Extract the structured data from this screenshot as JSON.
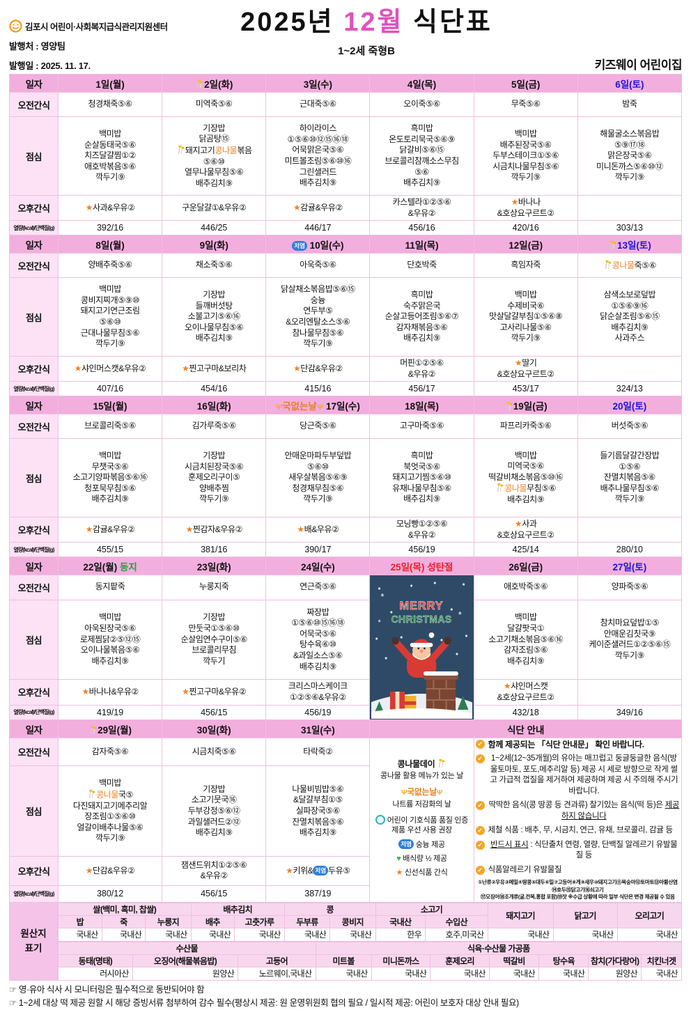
{
  "header": {
    "org": "김포시 어린이·사회복지급식관리지원센터",
    "publisher": "발행처 : 영양팀",
    "issued": "발행일 : 2025. 11. 17.",
    "title_year": "2025년",
    "title_month": "12월",
    "title_rest": "식단표",
    "subtitle": "1~2세 죽형B",
    "center_name": "키즈웨이 어린이집"
  },
  "row_labels": {
    "date": "일자",
    "am": "오전간식",
    "lunch": "점심",
    "pm": "오후간식",
    "kcal": "열량(kcal)/단백질(g)"
  },
  "weeks": [
    {
      "days": [
        {
          "date": "1일(월)",
          "am": "청경채죽⑤⑥",
          "lunch": [
            "백미밥",
            "순살동태국⑤⑥",
            "치즈달걀찜①②",
            "애호박볶음⑤⑥",
            "깍두기⑨"
          ],
          "pm": "★사과&우유②",
          "kcal": "392/16"
        },
        {
          "date": "2일(화)",
          "icon": "sprout",
          "am": "미역죽⑤⑥",
          "lunch": [
            "기장밥",
            "닭곰탕⑮",
            "§돼지고기콩나물볶음",
            "⑤⑥⑩",
            "열무나물무침⑤⑥",
            "배추김치⑨"
          ],
          "pm": "구운달걀①&우유②",
          "kcal": "446/25"
        },
        {
          "date": "3일(수)",
          "am": "근대죽⑤⑥",
          "lunch": [
            "하이라이스",
            "①⑤⑥⑩⑫⑮⑯⑱",
            "어묵맑은국⑤⑥",
            "미트볼조림⑤⑥⑩⑯",
            "그린샐러드",
            "배추김치⑨"
          ],
          "pm": "★감귤&우유②",
          "kcal": "446/17"
        },
        {
          "date": "4일(목)",
          "am": "오이죽⑤⑥",
          "lunch": [
            "흑미밥",
            "온도토리묵국⑤⑥⑨",
            "닭갈비⑤⑥⑮",
            "브로콜리참깨소스무침",
            "⑤⑥",
            "배추김치⑨"
          ],
          "pm": "카스텔라①②⑤⑥\n&우유②",
          "kcal": "456/16"
        },
        {
          "date": "5일(금)",
          "am": "무죽⑤⑥",
          "lunch": [
            "백미밥",
            "배추된장국⑤⑥",
            "두부스테이크①⑤⑥",
            "시금치나물무침⑤⑥",
            "깍두기⑨"
          ],
          "pm": "★바나나\n&호상요구르트②",
          "kcal": "420/16"
        },
        {
          "date": "6일(토)",
          "color": "#1b16d8",
          "am": "밤죽",
          "lunch": [
            "해물굴소스볶음밥",
            "⑤⑨⑰⑱",
            "맑은장국⑤⑥",
            "미니돈까스⑤⑥⑩⑫",
            "깍두기⑨"
          ],
          "pm": "",
          "kcal": "303/13"
        }
      ]
    },
    {
      "days": [
        {
          "date": "8일(월)",
          "am": "양배추죽⑤⑥",
          "lunch": [
            "백미밥",
            "콩비지찌개⑤⑨⑩",
            "돼지고기연근조림",
            "⑤⑥⑩",
            "근대나물무침⑤⑥",
            "깍두기⑨"
          ],
          "pm": "★샤인머스캣&우유②",
          "kcal": "407/16"
        },
        {
          "date": "9일(화)",
          "am": "채소죽⑤⑥",
          "lunch": [
            "기장밥",
            "들깨버섯탕",
            "소불고기⑤⑥⑯",
            "오이나물무침⑤⑥",
            "배추김치⑨"
          ],
          "pm": "★찐고구마&보리차",
          "kcal": "454/16"
        },
        {
          "date": "10일(수)",
          "icon": "lowsalt",
          "am": "아욱죽⑤⑥",
          "lunch": [
            "닭살채소볶음밥⑤⑥⑮",
            "숭늉",
            "연두부⑤",
            "&오리엔탈소스⑤⑥",
            "참나물무침⑤⑥",
            "깍두기⑨"
          ],
          "pm": "★단감&우유②",
          "kcal": "415/16"
        },
        {
          "date": "11일(목)",
          "am": "단호박죽",
          "lunch": [
            "흑미밥",
            "숙주맑은국",
            "순살고등어조림⑤⑥⑦",
            "감자채볶음⑤⑥",
            "배추김치⑨"
          ],
          "pm": "머핀①②⑤⑥\n&우유②",
          "kcal": "456/17"
        },
        {
          "date": "12일(금)",
          "am": "흑임자죽",
          "lunch": [
            "백미밥",
            "수제비국⑥",
            "맛살달걀부침①⑤⑥⑧",
            "고사리나물⑤⑥",
            "깍두기⑨"
          ],
          "pm": "★딸기\n&호상요구르트②",
          "kcal": "453/17"
        },
        {
          "date": "13일(토)",
          "color": "#1b16d8",
          "icon": "sprout",
          "am": "§콩나물죽⑤⑥",
          "lunch": [
            "삼색소보로덮밥",
            "①⑤⑥⑨⑯",
            "닭순살조림⑤⑥⑮",
            "배추김치⑨",
            "사과주스"
          ],
          "pm": "",
          "kcal": "324/13"
        }
      ]
    },
    {
      "days": [
        {
          "date": "15일(월)",
          "am": "브로콜리죽⑤⑥",
          "lunch": [
            "백미밥",
            "무챗국⑤⑥",
            "소고기양파볶음⑤⑥⑯",
            "청포묵무침⑤⑥",
            "배추김치⑨"
          ],
          "pm": "★감귤&우유②",
          "kcal": "455/15"
        },
        {
          "date": "16일(화)",
          "am": "김가루죽⑤⑥",
          "lunch": [
            "기장밥",
            "시금치된장국⑤⑥",
            "훈제오리구이⑤",
            "양배추찜",
            "깍두기⑨"
          ],
          "pm": "★찐감자&우유②",
          "kcal": "381/16"
        },
        {
          "date": "17일(수)",
          "icon": "nosoup",
          "am": "당근죽⑤⑥",
          "lunch": [
            "안매운마파두부덮밥",
            "⑤⑥⑩",
            "새우살볶음⑤⑥⑨",
            "청경채무침⑤⑥",
            "깍두기⑨"
          ],
          "pm": "★배&우유②",
          "kcal": "390/17"
        },
        {
          "date": "18일(목)",
          "am": "고구마죽⑤⑥",
          "lunch": [
            "흑미밥",
            "북엇국⑤⑥",
            "돼지고기찜⑤⑥⑩",
            "유채나물무침⑤⑥",
            "배추김치⑨"
          ],
          "pm": "모닝빵①②⑤⑥\n&우유②",
          "kcal": "456/19"
        },
        {
          "date": "19일(금)",
          "icon": "sprout",
          "am": "파프리카죽⑤⑥",
          "lunch": [
            "백미밥",
            "미역국⑤⑥",
            "떡갈비채소볶음⑤⑩⑯",
            "§콩나물무침⑤⑥",
            "배추김치⑨"
          ],
          "pm": "★사과\n&호상요구르트②",
          "kcal": "425/14"
        },
        {
          "date": "20일(토)",
          "color": "#1b16d8",
          "am": "버섯죽⑤⑥",
          "lunch": [
            "들기름달걀간장밥",
            "①⑤⑥",
            "잔멸치볶음⑤⑥",
            "배추나물무침⑤⑥",
            "깍두기⑨"
          ],
          "pm": "",
          "kcal": "280/10"
        }
      ]
    },
    {
      "days": [
        {
          "date": "22일(월)",
          "tag": {
            "text": "동지",
            "color": "#1fa03c"
          },
          "am": "동지팥죽",
          "lunch": [
            "백미밥",
            "아욱된장국⑤⑥",
            "로제찜닭②⑤⑫⑮",
            "오이나물볶음⑤⑥",
            "배추김치⑨"
          ],
          "pm": "★바나나&우유②",
          "kcal": "419/19"
        },
        {
          "date": "23일(화)",
          "am": "누룽지죽",
          "lunch": [
            "기장밥",
            "만둣국①⑤⑥⑩",
            "순살임연수구이⑤⑥",
            "브로콜리무침",
            "깍두기"
          ],
          "pm": "★찐고구마&우유②",
          "kcal": "456/15"
        },
        {
          "date": "24일(수)",
          "am": "연근죽⑤⑥",
          "lunch": [
            "짜장밥",
            "①⑤⑥⑩⑮⑯⑱",
            "어묵국⑤⑥",
            "탕수육⑥⑩",
            "&과일소스⑤⑥",
            "배추김치⑨"
          ],
          "pm": "크리스마스케이크\n①②⑤⑥&우유②",
          "kcal": "456/19"
        },
        {
          "date": "25일(목)",
          "color": "#ed1c24",
          "tag": {
            "text": "성탄절",
            "color": "#ed1c24"
          },
          "xmas": true
        },
        {
          "date": "26일(금)",
          "am": "애호박죽⑤⑥",
          "lunch": [
            "백미밥",
            "달걀팟국①",
            "소고기채소볶음⑤⑥⑯",
            "감자조림⑤⑥",
            "배추김치⑨"
          ],
          "pm": "★샤인머스캣\n&호상요구르트②",
          "kcal": "432/18"
        },
        {
          "date": "27일(토)",
          "color": "#1b16d8",
          "am": "양파죽⑤⑥",
          "lunch": [
            "참치마요덮밥①⑤",
            "안매운김칫국⑨",
            "케이준샐러드①②⑤⑥⑮",
            "깍두기⑨"
          ],
          "pm": "",
          "kcal": "349/16"
        }
      ]
    },
    {
      "days": [
        {
          "date": "29일(월)",
          "icon": "sprout",
          "am": "감자죽⑤⑥",
          "lunch": [
            "백미밥",
            "§콩나물국⑤",
            "다진돼지고기메추리알",
            "장조림①⑤⑥⑩",
            "얼갈이배추나물⑤⑥",
            "깍두기⑨"
          ],
          "pm": "★단감&우유②",
          "kcal": "380/12"
        },
        {
          "date": "30일(화)",
          "am": "시금치죽⑤⑥",
          "lunch": [
            "기장밥",
            "소고기뭇국⑯",
            "두부강정⑤⑥⑫",
            "과일샐러드②⑫",
            "배추김치⑨"
          ],
          "pm": "잼샌드위치①②⑤⑥\n&우유②",
          "kcal": "456/15"
        },
        {
          "date": "31일(수)",
          "am": "타락죽②",
          "lunch": [
            "나물비빔밥⑤⑥",
            "&달걀부침①⑤",
            "실파장국⑤⑥",
            "잔멸치볶음⑤⑥",
            "배추김치⑨"
          ],
          "pm": "★키위&¤두유⑤",
          "kcal": "387/19"
        },
        {
          "guide": true,
          "date": "식단 안내"
        }
      ]
    }
  ],
  "christmas": {
    "merry": "MERRY",
    "christmas": "CHRISTMAS"
  },
  "guide": {
    "legend": {
      "sprout_title": "콩나물데이",
      "sprout_desc": "콩나물 활용 메뉴가 있는 날",
      "nosoup_badge": "국없는날",
      "nosoup_desc": "나트륨 저감화의 날",
      "seal_desc": "어린이 기호식품 품질 인증 제품 우선 사용 권장",
      "lowsalt_desc": "숭늉 제공",
      "half_desc": "배식량 ½ 제공",
      "fresh_desc": "신선식품 간식"
    },
    "checks": [
      "함께 제공되는 「식단 안내문」 확인 바랍니다.",
      "1~2세(12~35개월)의 유아는 매끄럽고 둥글둥글한 음식(방울토마토, 포도,메추리알 등) 제공 시 세로 방향으로 작게 썰고 가급적 껍질을 제거하여 제공하며 제공 시 주의해 주시기 바랍니다.",
      "딱딱한 음식(콩 땅콩 등 견과류) 찰기있는 음식(떡 등)은 ¶제공하지 않습니다¶",
      "제철 식품 : 배추, 무, 시금치, 연근, 유채, 브로콜리, 감귤 등",
      "¶반드시 표시¶ : 식단출처 연령, 열량, 단백질 알레르기 유발물질 등",
      "식품알레르기 유발물질"
    ],
    "allergy_lines": [
      "①난류②우유③메밀④땅콩⑤대두⑥밀⑦고등어⑧게⑨새우⑩돼지고기⑪복숭아⑫토마토⑬아황산염⑭호두⑮닭고기⑯쇠고기",
      "⑰오징어⑱조개류(굴,전복,홍합 포함)⑲잣 ※수급 상황에 따라 일부 식단은 변경 제공될 수 있음"
    ]
  },
  "origin": {
    "label_line1": "원산지",
    "label_line2": "표기",
    "section1": [
      {
        "name": "쌀(백미, 흑미, 찹쌀)",
        "subs": [
          "밥",
          "죽",
          "누룽지"
        ],
        "vals": [
          "국내산",
          "국내산",
          "국내산"
        ]
      },
      {
        "name": "배추김치",
        "subs": [
          "배추",
          "고춧가루"
        ],
        "vals": [
          "국내산",
          "국내산"
        ]
      },
      {
        "name": "콩",
        "subs": [
          "두부류",
          "콩비지"
        ],
        "vals": [
          "국내산",
          "국내산"
        ]
      },
      {
        "name": "소고기",
        "subs": [
          "국내산",
          "수입산"
        ],
        "vals": [
          "한우",
          "호주,미국산"
        ]
      },
      {
        "name": "돼지고기",
        "subs": null,
        "vals": [
          "국내산"
        ]
      },
      {
        "name": "닭고기",
        "subs": null,
        "vals": [
          "국내산"
        ]
      },
      {
        "name": "오리고기",
        "subs": null,
        "vals": [
          "국내산"
        ]
      }
    ],
    "section2": [
      {
        "name": "수산물",
        "subs": [
          "동태(명태)",
          "오징어(해물볶음밥)",
          "고등어"
        ],
        "vals": [
          "러시아산",
          "원양산",
          "노르웨이,국내산"
        ]
      },
      {
        "name": "식육·수산물 가공품",
        "subs": [
          "미트볼",
          "미니돈까스",
          "훈제오리",
          "떡갈비",
          "탕수육",
          "참치(가다랑어)",
          "치킨너겟"
        ],
        "vals": [
          "국내산",
          "국내산",
          "국내산",
          "국내산",
          "국내산",
          "원양산",
          "국내산"
        ]
      }
    ]
  },
  "footnotes": [
    "☞ 영·유아 식사 시 모니터링은 필수적으로 동반되어야 함",
    "☞ 1~2세 대상 떡 제공 원할 시 해당 증빙서류 첨부하여 감수 필수(평상시 제공: 원 운영위원회 협의 필요 / 일시적 제공: 어린이 보호자 대상 안내 필요)"
  ]
}
